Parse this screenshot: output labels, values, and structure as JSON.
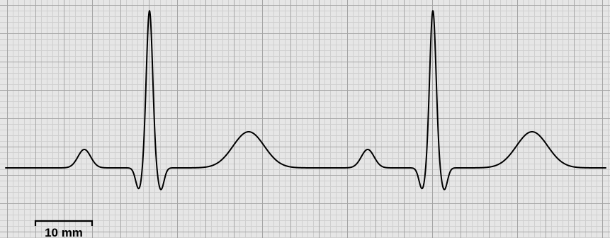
{
  "diagram": {
    "type": "ecg-strip",
    "beats": 2,
    "waves_per_beat": [
      "P",
      "Q",
      "R",
      "S",
      "T"
    ],
    "scale_bar": {
      "label": "10 mm",
      "length_mm": 10
    }
  },
  "colors": {
    "background": "#e6e6e6",
    "minor_grid": "#cfcfcf",
    "major_grid": "#a5a5a5",
    "trace": "#000000",
    "scale_bar": "#000000"
  }
}
